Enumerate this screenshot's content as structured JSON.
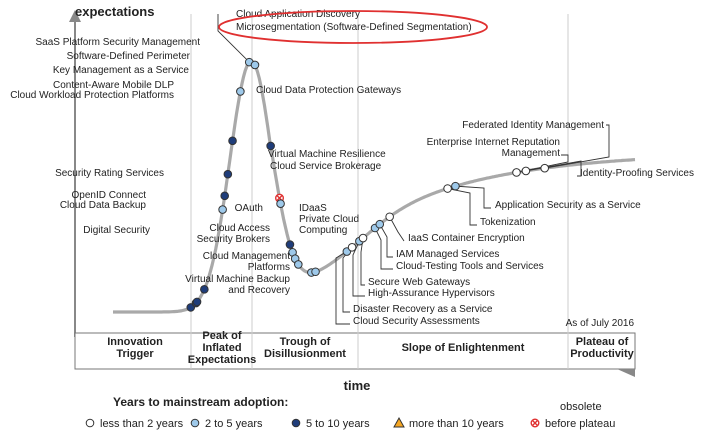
{
  "chart_data": {
    "type": "scatter",
    "title": "",
    "ylabel": "expectations",
    "xlabel": "time",
    "as_of": "As of July 2016",
    "phases": [
      {
        "name": "Innovation Trigger",
        "lines": [
          "Innovation",
          "Trigger"
        ]
      },
      {
        "name": "Peak of Inflated Expectations",
        "lines": [
          "Peak of",
          "Inflated",
          "Expectations"
        ]
      },
      {
        "name": "Trough of Disillusionment",
        "lines": [
          "Trough of",
          "Disillusionment"
        ]
      },
      {
        "name": "Slope of Enlightenment",
        "lines": [
          "Slope of Enlightenment"
        ]
      },
      {
        "name": "Plateau of Productivity",
        "lines": [
          "Plateau of",
          "Productivity"
        ]
      }
    ],
    "legend": {
      "title": "Years to mainstream adoption:",
      "items": [
        {
          "key": "lt2",
          "label": "less than 2 years",
          "color": "#ffffff",
          "shape": "circle"
        },
        {
          "key": "2to5",
          "label": "2 to 5 years",
          "color": "#9ec9ea",
          "shape": "circle"
        },
        {
          "key": "5to10",
          "label": "5 to 10 years",
          "color": "#1f3d7a",
          "shape": "circle"
        },
        {
          "key": "gt10",
          "label": "more than 10 years",
          "color": "#f5a623",
          "shape": "triangle"
        },
        {
          "key": "obsolete",
          "label_lines": [
            "obsolete",
            "before plateau"
          ],
          "color": "#e03030",
          "shape": "x-circle"
        }
      ]
    },
    "highlight": "Microsegmentation (Software-Defined Segmentation)",
    "points": [
      {
        "name": "Digital Security",
        "t": 0.149,
        "cat": "5to10"
      },
      {
        "name": "Cloud Data Backup",
        "t": 0.159,
        "cat": "5to10"
      },
      {
        "name": "OpenID Connect",
        "t": 0.161,
        "cat": "5to10"
      },
      {
        "name": "Security Rating Services",
        "t": 0.175,
        "cat": "5to10"
      },
      {
        "name": "Cloud Workload Protection Platforms",
        "t": 0.21,
        "cat": "2to5"
      },
      {
        "name": "Content-Aware Mobile DLP",
        "t": 0.214,
        "cat": "5to10"
      },
      {
        "name": "Key Management as a Service",
        "t": 0.22,
        "cat": "5to10"
      },
      {
        "name": "Software-Defined Perimeter",
        "t": 0.229,
        "cat": "5to10"
      },
      {
        "name": "SaaS Platform Security Management",
        "t": 0.244,
        "cat": "2to5"
      },
      {
        "name": "Cloud Application Discovery",
        "t": 0.261,
        "cat": "2to5"
      },
      {
        "name": "Microsegmentation (Software-Defined Segmentation)",
        "t": 0.272,
        "cat": "2to5"
      },
      {
        "name": "Cloud Data Protection Gateways",
        "t": 0.302,
        "cat": "5to10"
      },
      {
        "name": "Virtual Machine Resilience",
        "t": 0.319,
        "cat": "obsolete"
      },
      {
        "name": "Cloud Service Brokerage",
        "t": 0.321,
        "cat": "2to5"
      },
      {
        "name": "OAuth",
        "t": 0.339,
        "cat": "5to10"
      },
      {
        "name": "IDaaS",
        "t": 0.344,
        "cat": "2to5"
      },
      {
        "name": "Private Cloud Computing",
        "t": 0.349,
        "cat": "2to5"
      },
      {
        "name": "Cloud Access Security Brokers",
        "t": 0.355,
        "cat": "2to5"
      },
      {
        "name": "Cloud Management Platforms",
        "t": 0.38,
        "cat": "2to5"
      },
      {
        "name": "Virtual Machine Backup and Recovery",
        "t": 0.388,
        "cat": "2to5"
      },
      {
        "name": "Cloud Security Assessments",
        "t": 0.448,
        "cat": "2to5"
      },
      {
        "name": "Disaster Recovery as a Service",
        "t": 0.458,
        "cat": "lt2"
      },
      {
        "name": "High-Assurance Hypervisors",
        "t": 0.472,
        "cat": "2to5"
      },
      {
        "name": "Secure Web Gateways",
        "t": 0.479,
        "cat": "lt2"
      },
      {
        "name": "Cloud-Testing Tools and Services",
        "t": 0.502,
        "cat": "2to5"
      },
      {
        "name": "IAM Managed Services",
        "t": 0.511,
        "cat": "2to5"
      },
      {
        "name": "IaaS Container Encryption",
        "t": 0.53,
        "cat": "lt2"
      },
      {
        "name": "Tokenization",
        "t": 0.641,
        "cat": "lt2"
      },
      {
        "name": "Application Security as a Service",
        "t": 0.656,
        "cat": "2to5"
      },
      {
        "name": "Enterprise Internet Reputation Management",
        "t": 0.773,
        "cat": "lt2"
      },
      {
        "name": "Identity-Proofing Services",
        "t": 0.791,
        "cat": "lt2"
      },
      {
        "name": "Federated Identity Management",
        "t": 0.827,
        "cat": "lt2"
      }
    ]
  }
}
